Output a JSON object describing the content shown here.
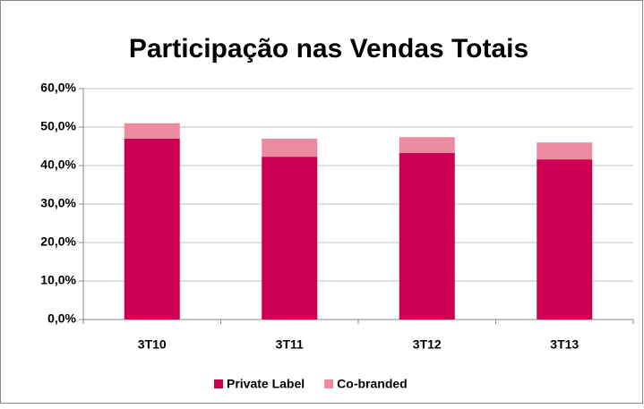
{
  "chart_data": {
    "type": "stacked-bar",
    "title": "Participação nas Vendas Totais",
    "categories": [
      "3T10",
      "3T11",
      "3T12",
      "3T13"
    ],
    "series": [
      {
        "name": "Private Label",
        "color": "#cc0052",
        "values": [
          47.0,
          42.3,
          43.3,
          41.6
        ]
      },
      {
        "name": "Co-branded",
        "color": "#ec8aa0",
        "values": [
          4.0,
          4.7,
          4.1,
          4.4
        ]
      }
    ],
    "ylim": [
      0,
      60
    ],
    "yticks": [
      {
        "value": 0,
        "label": "0,0%"
      },
      {
        "value": 10,
        "label": "10,0%"
      },
      {
        "value": 20,
        "label": "20,0%"
      },
      {
        "value": 30,
        "label": "30,0%"
      },
      {
        "value": 40,
        "label": "40,0%"
      },
      {
        "value": 50,
        "label": "50,0%"
      },
      {
        "value": 60,
        "label": "60,0%"
      }
    ],
    "grid": true,
    "legend": "bottom"
  }
}
